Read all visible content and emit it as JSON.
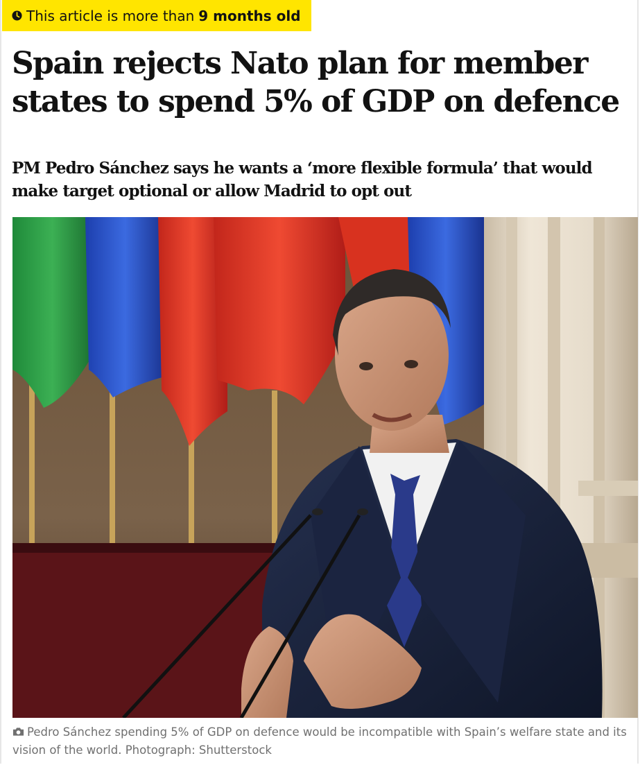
{
  "banner": {
    "prefix": "This article is more than",
    "age": "9 months old",
    "icon": "clock-icon",
    "background": "#ffe500"
  },
  "article": {
    "headline": "Spain rejects Nato plan for member states to spend 5% of GDP on defence",
    "standfirst": "PM Pedro Sánchez says he wants a ‘more flexible formula’ that would make target optional or allow Madrid to opt out"
  },
  "photo": {
    "alt": "Pedro Sánchez speaking at a podium in front of flags"
  },
  "caption": {
    "icon": "camera-icon",
    "text": "Pedro Sánchez spending 5% of GDP on defence would be incompatible with Spain’s welfare state and its vision of the world. Photograph: Shutterstock"
  }
}
